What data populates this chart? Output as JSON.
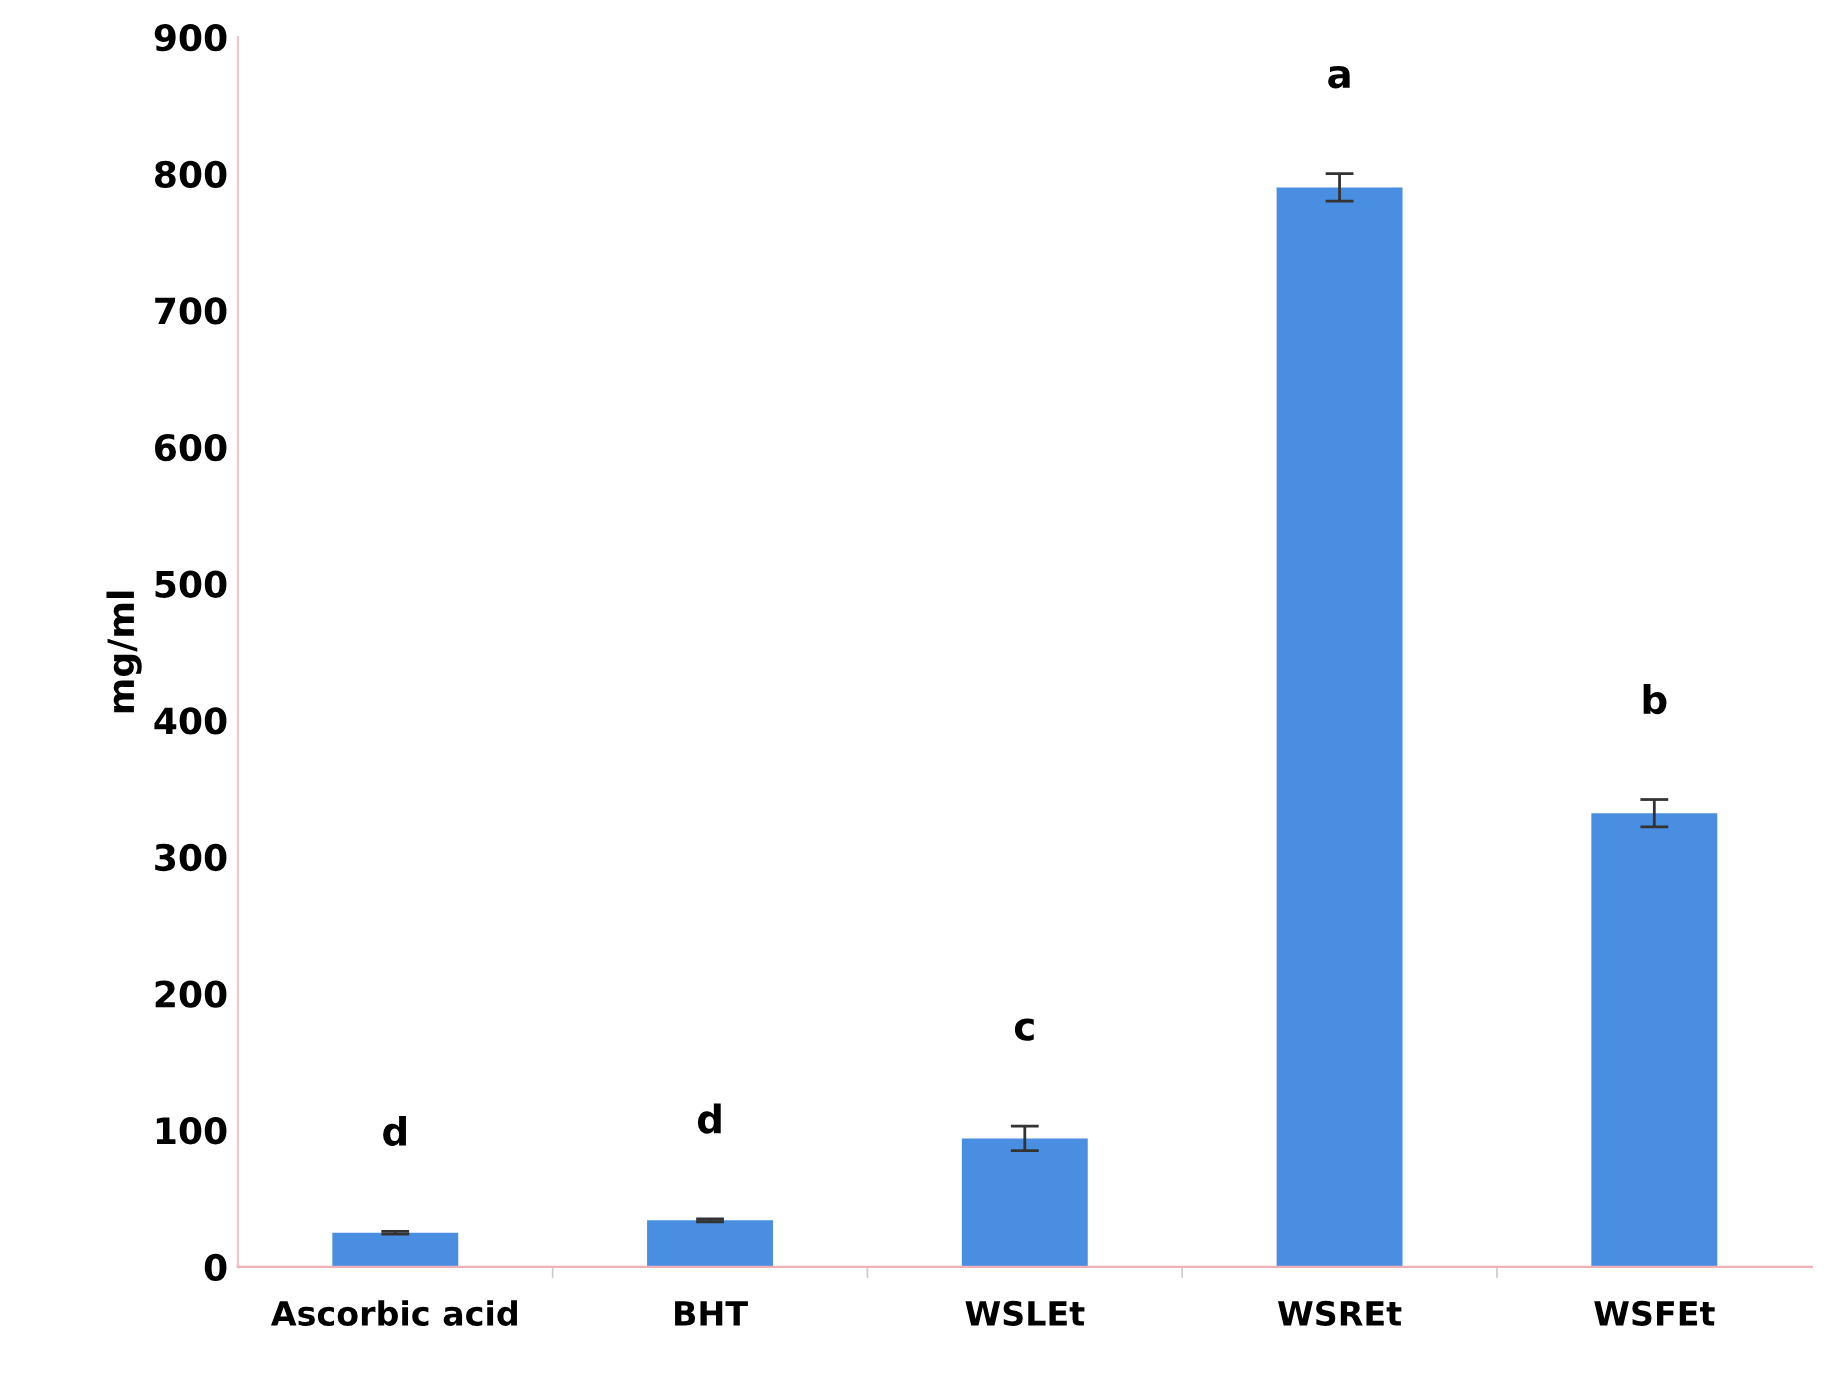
{
  "chart_data": {
    "type": "bar",
    "ylabel": "mg/ml",
    "categories": [
      "Ascorbic acid",
      "BHT",
      "WSLEt",
      "WSREt",
      "WSFEt"
    ],
    "values": [
      25,
      34,
      94,
      790,
      332
    ],
    "errors": [
      1,
      1,
      9,
      10,
      10
    ],
    "color": "#4a8ee2",
    "ylim": [
      0,
      900
    ],
    "yticks": [
      0,
      100,
      200,
      300,
      400,
      500,
      600,
      700,
      800,
      900
    ],
    "grid": false,
    "annotations": [
      "d",
      "d",
      "c",
      "a",
      "b"
    ]
  }
}
